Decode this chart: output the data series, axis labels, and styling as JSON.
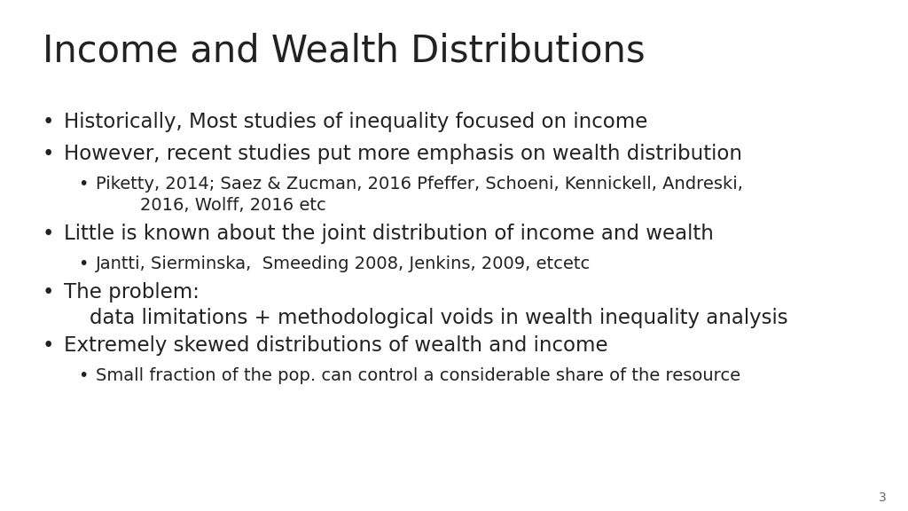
{
  "title": "Income and Wealth Distributions",
  "background_color": "#ffffff",
  "text_color": "#222222",
  "title_fontsize": 30,
  "body_fontsize": 16.5,
  "sub_fontsize": 14,
  "page_number": "3",
  "bullets": [
    {
      "level": 0,
      "text": "Historically, Most studies of inequality focused on income"
    },
    {
      "level": 0,
      "text": "However, recent studies put more emphasis on wealth distribution"
    },
    {
      "level": 1,
      "text": "Piketty, 2014; Saez & Zucman, 2016 Pfeffer, Schoeni, Kennickell, Andreski,\n        2016, Wolff, 2016 etc"
    },
    {
      "level": 0,
      "text": "Little is known about the joint distribution of income and wealth"
    },
    {
      "level": 1,
      "text": "Jantti, Sierminska,  Smeeding 2008, Jenkins, 2009, etcetc"
    },
    {
      "level": 0,
      "text": "The problem:\n    data limitations + methodological voids in wealth inequality analysis"
    },
    {
      "level": 0,
      "text": "Extremely skewed distributions of wealth and income"
    },
    {
      "level": 1,
      "text": "Small fraction of the pop. can control a considerable share of the resource"
    }
  ]
}
